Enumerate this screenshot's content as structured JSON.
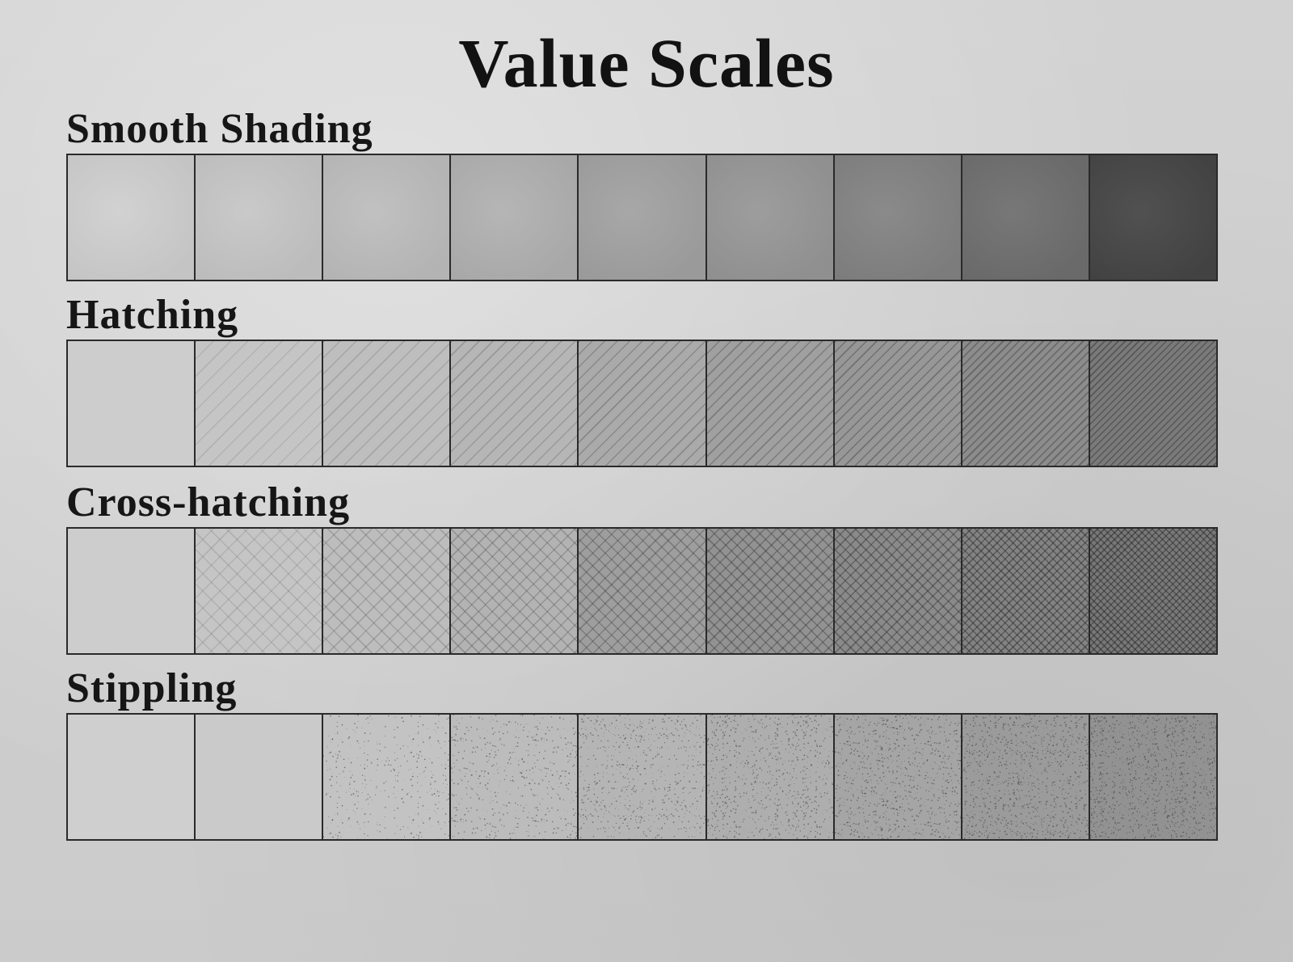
{
  "page": {
    "title": "Value Scales"
  },
  "sections": [
    {
      "title": "Smooth Shading",
      "technique": "smooth",
      "cell_tones": [
        "#cfcfcf",
        "#c6c6c6",
        "#bdbdbd",
        "#b1b1b1",
        "#a2a2a2",
        "#979797",
        "#838383",
        "#6f6f6f",
        "#464646"
      ]
    },
    {
      "title": "Hatching",
      "technique": "hatch",
      "cell_tones": [
        "#cdcdcd",
        "#c5c5c5",
        "#bebebe",
        "#b6b6b6",
        "#aaaaaa",
        "#a0a0a0",
        "#979797",
        "#8c8c8c",
        "#7a7a7a"
      ]
    },
    {
      "title": "Cross-hatching",
      "technique": "crosshatch",
      "cell_tones": [
        "#cdcdcd",
        "#c5c5c5",
        "#bdbdbd",
        "#b3b3b3",
        "#9e9e9e",
        "#929292",
        "#8a8a8a",
        "#838383",
        "#787878"
      ]
    },
    {
      "title": "Stippling",
      "technique": "stipple",
      "cell_tones": [
        "#cfcfcf",
        "#cacaca",
        "#c3c3c3",
        "#bcbcbc",
        "#b5b5b5",
        "#aeaeae",
        "#a5a5a5",
        "#9b9b9b",
        "#929292"
      ]
    }
  ]
}
